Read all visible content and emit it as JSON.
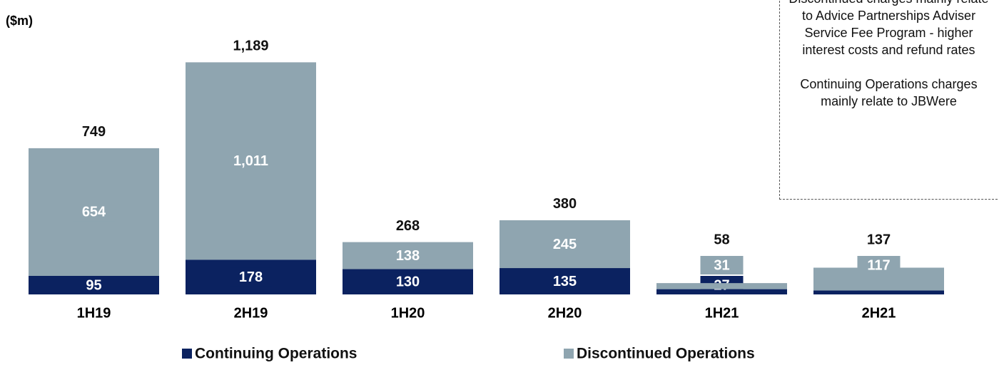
{
  "chart_data": {
    "type": "stacked_bar",
    "unit_label": "($m)",
    "categories": [
      "1H19",
      "2H19",
      "1H20",
      "2H20",
      "1H21",
      "2H21"
    ],
    "series": [
      {
        "name": "Continuing Operations",
        "color": "#0b2260",
        "values": [
          95,
          178,
          130,
          135,
          27,
          20
        ]
      },
      {
        "name": "Discontinued Operations",
        "color": "#8fa5b0",
        "values": [
          654,
          1011,
          138,
          245,
          31,
          117
        ],
        "value_labels": [
          "654",
          "1,011",
          "138",
          "245",
          "31",
          "117"
        ]
      }
    ],
    "totals": {
      "values": [
        749,
        1189,
        268,
        380,
        58,
        137
      ],
      "value_labels": [
        "749",
        "1,189",
        "268",
        "380",
        "58",
        "137"
      ]
    },
    "ylim": [
      0,
      1300
    ],
    "annotations": [
      "Discontinued charges mainly relate to Advice Partnerships Adviser Service Fee Program  - higher interest costs and refund rates",
      "Continuing Operations charges mainly relate to JBWere"
    ]
  }
}
